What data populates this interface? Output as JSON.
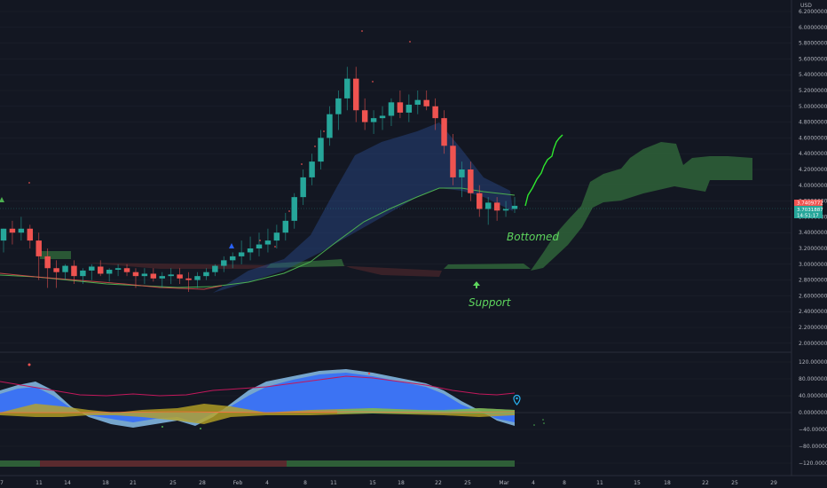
{
  "chart_data": {
    "type": "candlestick",
    "currency": "USD",
    "price_ticks": [
      "6.2000000",
      "6.0000000",
      "5.8000000",
      "5.6000000",
      "5.4000000",
      "5.2000000",
      "5.0000000",
      "4.8000000",
      "4.6000000",
      "4.4000000",
      "4.2000000",
      "4.0000000",
      "3.8000000",
      "3.6000000",
      "3.4000000",
      "3.2000000",
      "3.0000000",
      "2.8000000",
      "2.6000000",
      "2.4000000",
      "2.2000000",
      "2.0000000"
    ],
    "osc_ticks": [
      "120.0000000",
      "80.0000000",
      "40.0000000",
      "0.0000000",
      "−40.0000000",
      "−80.0000000",
      "−120.0000000"
    ],
    "date_ticks": [
      "7",
      "11",
      "14",
      "18",
      "21",
      "25",
      "28",
      "Feb",
      "4",
      "8",
      "11",
      "15",
      "18",
      "22",
      "25",
      "Mar",
      "4",
      "8",
      "11",
      "15",
      "18",
      "22",
      "25",
      "29"
    ],
    "price_tags": {
      "a": "3.7409772",
      "b": "3.7031887",
      "c": "14:51:17"
    },
    "annotations": {
      "bottomed": "Bottomed",
      "support": "Support"
    },
    "colors": {
      "up": "#26a69a",
      "down": "#ef5350",
      "cloud": "#2e5e37",
      "ma": "#4caf50",
      "osc_blue": "#2962ff",
      "osc_line": "#c2185b"
    },
    "candles": [
      [
        3.3,
        3.45,
        3.15,
        3.45
      ],
      [
        3.45,
        3.55,
        3.25,
        3.4
      ],
      [
        3.4,
        3.6,
        3.3,
        3.45
      ],
      [
        3.45,
        3.5,
        3.2,
        3.3
      ],
      [
        3.3,
        3.4,
        2.8,
        3.1
      ],
      [
        3.1,
        3.2,
        2.7,
        2.95
      ],
      [
        2.95,
        3.05,
        2.7,
        2.9
      ],
      [
        2.9,
        3.0,
        2.8,
        2.98
      ],
      [
        2.98,
        3.05,
        2.75,
        2.85
      ],
      [
        2.85,
        2.95,
        2.75,
        2.92
      ],
      [
        2.92,
        3.0,
        2.8,
        2.97
      ],
      [
        2.97,
        3.05,
        2.85,
        2.88
      ],
      [
        2.88,
        2.95,
        2.78,
        2.93
      ],
      [
        2.93,
        3.0,
        2.85,
        2.95
      ],
      [
        2.95,
        3.0,
        2.85,
        2.9
      ],
      [
        2.9,
        2.95,
        2.7,
        2.85
      ],
      [
        2.85,
        2.95,
        2.75,
        2.88
      ],
      [
        2.88,
        2.95,
        2.78,
        2.82
      ],
      [
        2.82,
        2.9,
        2.7,
        2.85
      ],
      [
        2.85,
        2.95,
        2.75,
        2.87
      ],
      [
        2.87,
        2.95,
        2.75,
        2.82
      ],
      [
        2.82,
        2.9,
        2.65,
        2.8
      ],
      [
        2.8,
        2.9,
        2.7,
        2.85
      ],
      [
        2.85,
        2.95,
        2.8,
        2.9
      ],
      [
        2.9,
        3.0,
        2.85,
        2.98
      ],
      [
        2.98,
        3.1,
        2.9,
        3.05
      ],
      [
        3.05,
        3.15,
        2.95,
        3.1
      ],
      [
        3.1,
        3.3,
        3.0,
        3.15
      ],
      [
        3.15,
        3.35,
        3.05,
        3.2
      ],
      [
        3.2,
        3.4,
        3.1,
        3.25
      ],
      [
        3.25,
        3.45,
        3.15,
        3.3
      ],
      [
        3.3,
        3.5,
        3.2,
        3.4
      ],
      [
        3.4,
        3.65,
        3.3,
        3.55
      ],
      [
        3.55,
        3.9,
        3.45,
        3.85
      ],
      [
        3.85,
        4.2,
        3.75,
        4.1
      ],
      [
        4.1,
        4.4,
        4.0,
        4.3
      ],
      [
        4.3,
        4.7,
        4.2,
        4.6
      ],
      [
        4.6,
        5.0,
        4.5,
        4.9
      ],
      [
        4.9,
        5.2,
        4.7,
        5.1
      ],
      [
        5.1,
        5.5,
        4.95,
        5.35
      ],
      [
        5.35,
        5.5,
        4.8,
        4.95
      ],
      [
        4.95,
        5.1,
        4.7,
        4.8
      ],
      [
        4.8,
        4.95,
        4.65,
        4.85
      ],
      [
        4.85,
        5.0,
        4.7,
        4.88
      ],
      [
        4.88,
        5.1,
        4.75,
        5.05
      ],
      [
        5.05,
        5.2,
        4.85,
        4.92
      ],
      [
        4.92,
        5.15,
        4.8,
        5.02
      ],
      [
        5.02,
        5.2,
        4.9,
        5.08
      ],
      [
        5.08,
        5.2,
        4.95,
        5.0
      ],
      [
        5.0,
        5.1,
        4.7,
        4.85
      ],
      [
        4.85,
        4.95,
        4.4,
        4.5
      ],
      [
        4.5,
        4.65,
        4.0,
        4.1
      ],
      [
        4.1,
        4.3,
        3.85,
        4.2
      ],
      [
        4.2,
        4.3,
        3.8,
        3.9
      ],
      [
        3.9,
        4.0,
        3.6,
        3.7
      ],
      [
        3.7,
        3.85,
        3.5,
        3.78
      ],
      [
        3.78,
        3.85,
        3.55,
        3.68
      ],
      [
        3.68,
        3.8,
        3.6,
        3.7
      ],
      [
        3.7,
        3.85,
        3.65,
        3.74
      ]
    ]
  }
}
